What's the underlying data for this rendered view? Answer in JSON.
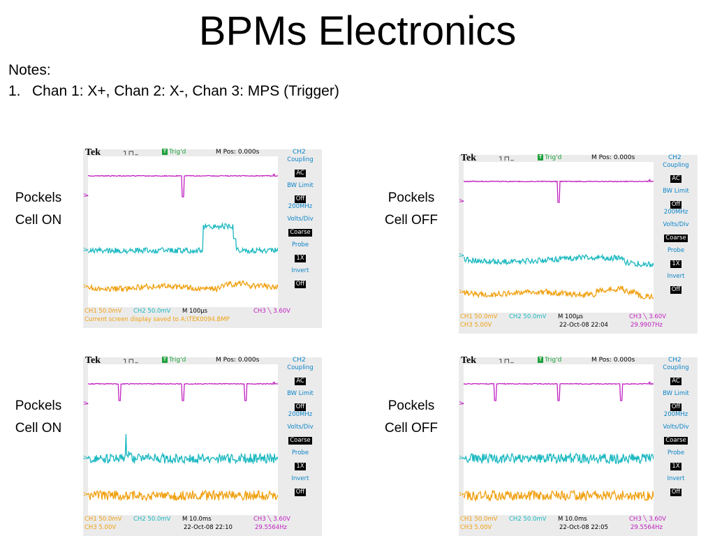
{
  "slide": {
    "title": "BPMs Electronics",
    "notes_heading": "Notes:",
    "notes": [
      {
        "num": "1.",
        "text": "Chan 1: X+, Chan 2: X-, Chan 3: MPS (Trigger)"
      }
    ]
  },
  "colors": {
    "ch1": "#f0a010",
    "ch2": "#1ab8c0",
    "ch3": "#c020c0",
    "menu": "#0b84c8",
    "trig": "#1ea03c"
  },
  "scopes": [
    {
      "label_line1": "Pockels",
      "label_line2": "Cell ON",
      "brand": "Tek",
      "trig_state": "Trig'd",
      "trig_icon": "T",
      "mpos": "M Pos: 0.000s",
      "menu_channel": "CH2",
      "markers": {
        "ch3": "3",
        "ch2": "2",
        "ch1": "1"
      },
      "menu": {
        "coupling_label": "Coupling",
        "coupling_value": "AC",
        "bw_label": "BW Limit",
        "bw_value": "Off",
        "bw_sub": "200MHz",
        "volts_label": "Volts/Div",
        "volts_value": "Coarse",
        "probe_label": "Probe",
        "probe_value": "1X",
        "invert_label": "Invert",
        "invert_value": "Off"
      },
      "status": {
        "ch1": "CH1  50.0mV",
        "ch2": "CH2  50.0mV",
        "timebase": "M 100µs",
        "trigger": "CH3 ╲ 3.60V",
        "line2_a": "Current screen display saved to A:\\TEK0094.BMP",
        "line2_b": "",
        "line2_c": ""
      },
      "signals": {
        "pockels_pulse": true,
        "timebase_us": 100,
        "mps_dips": 1
      }
    },
    {
      "label_line1": "Pockels",
      "label_line2": "Cell OFF",
      "brand": "Tek",
      "trig_state": "Trig'd",
      "trig_icon": "T",
      "mpos": "M Pos: 0.000s",
      "menu_channel": "CH2",
      "markers": {
        "ch3": "3",
        "ch2": "2",
        "ch1": "1"
      },
      "menu": {
        "coupling_label": "Coupling",
        "coupling_value": "AC",
        "bw_label": "BW Limit",
        "bw_value": "Off",
        "bw_sub": "200MHz",
        "volts_label": "Volts/Div",
        "volts_value": "Coarse",
        "probe_label": "Probe",
        "probe_value": "1X",
        "invert_label": "Invert",
        "invert_value": "Off"
      },
      "status": {
        "ch1": "CH1  50.0mV",
        "ch2": "CH2  50.0mV",
        "timebase": "M 100µs",
        "trigger": "CH3 ╲ 3.60V",
        "line2_a": "CH3  5.00V",
        "line2_b": "22-Oct-08 22:04",
        "line2_c": "29.9907Hz"
      },
      "signals": {
        "pockels_pulse": false,
        "timebase_us": 100,
        "mps_dips": 1
      }
    },
    {
      "label_line1": "Pockels",
      "label_line2": "Cell ON",
      "brand": "Tek",
      "trig_state": "Trig'd",
      "trig_icon": "T",
      "mpos": "M Pos: 0.000s",
      "menu_channel": "CH2",
      "markers": {
        "ch3": "3",
        "ch2": "2",
        "ch1": "1"
      },
      "menu": {
        "coupling_label": "Coupling",
        "coupling_value": "AC",
        "bw_label": "BW Limit",
        "bw_value": "Off",
        "bw_sub": "200MHz",
        "volts_label": "Volts/Div",
        "volts_value": "Coarse",
        "probe_label": "Probe",
        "probe_value": "1X",
        "invert_label": "Invert",
        "invert_value": "Off"
      },
      "status": {
        "ch1": "CH1  50.0mV",
        "ch2": "CH2  50.0mV",
        "timebase": "M 10.0ms",
        "trigger": "CH3 ╲ 3.60V",
        "line2_a": "CH3  5.00V",
        "line2_b": "22-Oct-08 22:10",
        "line2_c": "29.5564Hz"
      },
      "signals": {
        "pockels_pulse": false,
        "timebase_ms": 10,
        "mps_dips": 3,
        "spike": true
      }
    },
    {
      "label_line1": "Pockels",
      "label_line2": "Cell OFF",
      "brand": "Tek",
      "trig_state": "Trig'd",
      "trig_icon": "T",
      "mpos": "M Pos: 0.000s",
      "menu_channel": "CH2",
      "markers": {
        "ch3": "3",
        "ch2": "2",
        "ch1": "1"
      },
      "menu": {
        "coupling_label": "Coupling",
        "coupling_value": "AC",
        "bw_label": "BW Limit",
        "bw_value": "Off",
        "bw_sub": "200MHz",
        "volts_label": "Volts/Div",
        "volts_value": "Coarse",
        "probe_label": "Probe",
        "probe_value": "1X",
        "invert_label": "Invert",
        "invert_value": "Off"
      },
      "status": {
        "ch1": "CH1  50.0mV",
        "ch2": "CH2  50.0mV",
        "timebase": "M 10.0ms",
        "trigger": "CH3 ╲ 3.60V",
        "line2_a": "CH3  5.00V",
        "line2_b": "22-Oct-08 22:05",
        "line2_c": "29.5564Hz"
      },
      "signals": {
        "pockels_pulse": false,
        "timebase_ms": 10,
        "mps_dips": 3,
        "spike": false
      }
    }
  ]
}
